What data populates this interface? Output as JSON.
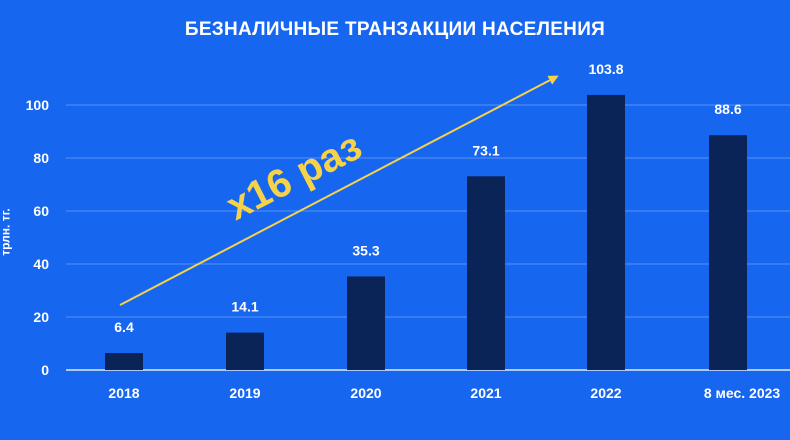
{
  "chart_data": {
    "type": "bar",
    "title": "БЕЗНАЛИЧНЫЕ ТРАНЗАКЦИИ НАСЕЛЕНИЯ",
    "ylabel": "трлн. тг.",
    "xlabel": "",
    "categories": [
      "2018",
      "2019",
      "2020",
      "2021",
      "2022",
      "8 мес. 2023"
    ],
    "values": [
      6.4,
      14.1,
      35.3,
      73.1,
      103.8,
      88.6
    ],
    "data_labels": [
      "6.4",
      "14.1",
      "35.3",
      "73.1",
      "103.8",
      "88.6"
    ],
    "ylim": [
      0,
      100
    ],
    "yticks": [
      0,
      20,
      40,
      60,
      80,
      100
    ],
    "grid": true,
    "annotation": "x16 раз",
    "colors": {
      "background": "#1766f0",
      "bar": "#0b2458",
      "grid": "#5a92f2",
      "annotation": "#f5d24a",
      "text": "#ffffff"
    }
  }
}
